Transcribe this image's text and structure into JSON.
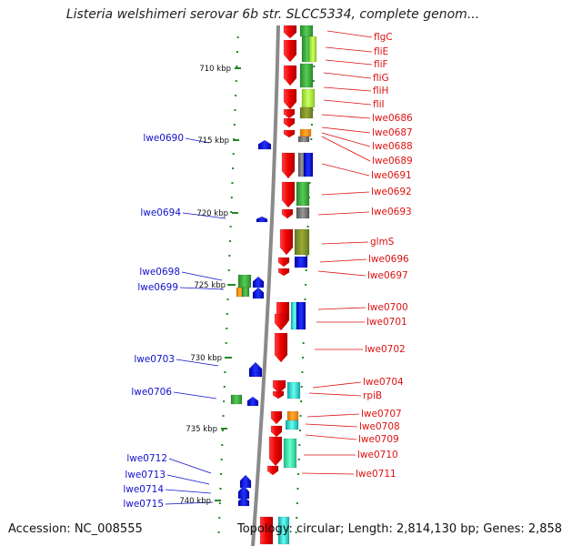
{
  "title": "Listeria welshimeri serovar 6b str. SLCC5334, complete genom...",
  "footer": {
    "accession": "Accession: NC_008555",
    "topology": "Topology: circular; Length: 2,814,130 bp; Genes: 2,858"
  },
  "colors": {
    "backbone": "#8a8a8a",
    "right_label": "#dd1111",
    "left_label": "#1111cc",
    "tick": "#228822"
  },
  "kbp_ticks": [
    "710 kbp",
    "715 kbp",
    "720 kbp",
    "725 kbp",
    "730 kbp",
    "735 kbp",
    "740 kbp"
  ],
  "right_genes": [
    "flgC",
    "fliE",
    "fliF",
    "fliG",
    "fliH",
    "fliI",
    "lwe0686",
    "lwe0687",
    "lwe0688",
    "lwe0689",
    "lwe0691",
    "lwe0692",
    "lwe0693",
    "glmS",
    "lwe0696",
    "lwe0697",
    "lwe0700",
    "lwe0701",
    "lwe0702",
    "lwe0704",
    "rpiB",
    "lwe0707",
    "lwe0708",
    "lwe0709",
    "lwe0710",
    "lwe0711"
  ],
  "left_genes": [
    "lwe0690",
    "lwe0694",
    "lwe0698",
    "lwe0699",
    "lwe0703",
    "lwe0706",
    "lwe0712",
    "lwe0713",
    "lwe0714",
    "lwe0715"
  ]
}
